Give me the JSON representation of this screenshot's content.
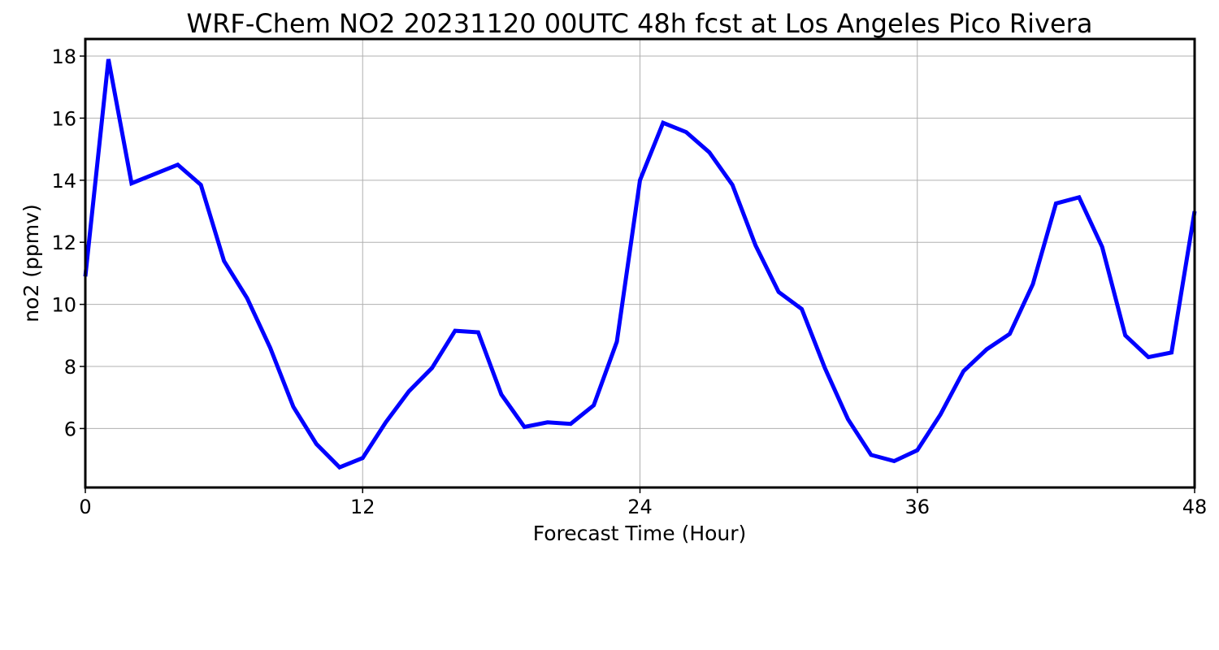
{
  "chart_data": {
    "type": "line",
    "title": "WRF-Chem NO2  20231120 00UTC 48h fcst at Los Angeles Pico Rivera",
    "xlabel": "Forecast Time (Hour)",
    "ylabel": "no2  (ppmv)",
    "xlim": [
      0,
      48
    ],
    "ylim": [
      4.1,
      18.55
    ],
    "xticks": [
      0,
      12,
      24,
      36,
      48
    ],
    "yticks": [
      6,
      8,
      10,
      12,
      14,
      16,
      18
    ],
    "grid": true,
    "series": [
      {
        "color": "#0000ff",
        "x": [
          0,
          1,
          2,
          3,
          4,
          5,
          6,
          7,
          8,
          9,
          10,
          11,
          12,
          13,
          14,
          15,
          16,
          17,
          18,
          19,
          20,
          21,
          22,
          23,
          24,
          25,
          26,
          27,
          28,
          29,
          30,
          31,
          32,
          33,
          34,
          35,
          36,
          37,
          38,
          39,
          40,
          41,
          42,
          43,
          44,
          45,
          46,
          47,
          48
        ],
        "values": [
          10.9,
          17.9,
          13.9,
          14.2,
          14.5,
          13.85,
          11.4,
          10.2,
          8.6,
          6.7,
          5.5,
          4.75,
          5.05,
          6.2,
          7.2,
          7.95,
          9.15,
          9.1,
          7.1,
          6.05,
          6.2,
          6.15,
          6.75,
          8.8,
          14.0,
          15.85,
          15.55,
          14.9,
          13.85,
          11.9,
          10.4,
          9.85,
          7.95,
          6.3,
          5.15,
          4.95,
          5.3,
          6.45,
          7.85,
          8.55,
          9.05,
          10.65,
          13.25,
          13.45,
          11.85,
          9.0,
          8.3,
          8.45,
          13.0
        ]
      }
    ]
  }
}
